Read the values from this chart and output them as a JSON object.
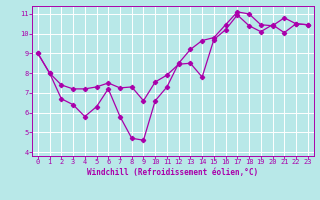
{
  "line1_x": [
    0,
    1,
    2,
    3,
    4,
    5,
    6,
    7,
    8,
    9,
    10,
    11,
    12,
    13,
    14,
    15,
    16,
    17,
    18,
    19,
    20,
    21,
    22,
    23
  ],
  "line1_y": [
    9.0,
    8.0,
    6.7,
    6.4,
    5.8,
    6.3,
    7.2,
    5.8,
    4.7,
    4.6,
    6.6,
    7.3,
    8.5,
    9.2,
    9.65,
    9.8,
    10.45,
    11.1,
    11.0,
    10.45,
    10.4,
    10.8,
    10.5,
    10.45
  ],
  "line2_x": [
    0,
    1,
    2,
    3,
    4,
    5,
    6,
    7,
    8,
    9,
    10,
    11,
    12,
    13,
    14,
    15,
    16,
    17,
    18,
    19,
    20,
    21,
    22,
    23
  ],
  "line2_y": [
    9.0,
    8.0,
    7.4,
    7.2,
    7.2,
    7.3,
    7.5,
    7.25,
    7.3,
    6.6,
    7.55,
    7.9,
    8.45,
    8.5,
    7.8,
    9.7,
    10.2,
    10.95,
    10.4,
    10.1,
    10.45,
    10.05,
    10.5,
    10.45
  ],
  "line_color": "#aa00aa",
  "bg_color": "#b8e8e8",
  "grid_color": "#ffffff",
  "xlim": [
    -0.5,
    23.5
  ],
  "ylim": [
    3.8,
    11.4
  ],
  "yticks": [
    4,
    5,
    6,
    7,
    8,
    9,
    10,
    11
  ],
  "xticks": [
    0,
    1,
    2,
    3,
    4,
    5,
    6,
    7,
    8,
    9,
    10,
    11,
    12,
    13,
    14,
    15,
    16,
    17,
    18,
    19,
    20,
    21,
    22,
    23
  ],
  "xlabel": "Windchill (Refroidissement éolien,°C)",
  "marker": "D",
  "markersize": 2.2,
  "linewidth": 0.9,
  "tick_fontsize": 5.0,
  "xlabel_fontsize": 5.5
}
